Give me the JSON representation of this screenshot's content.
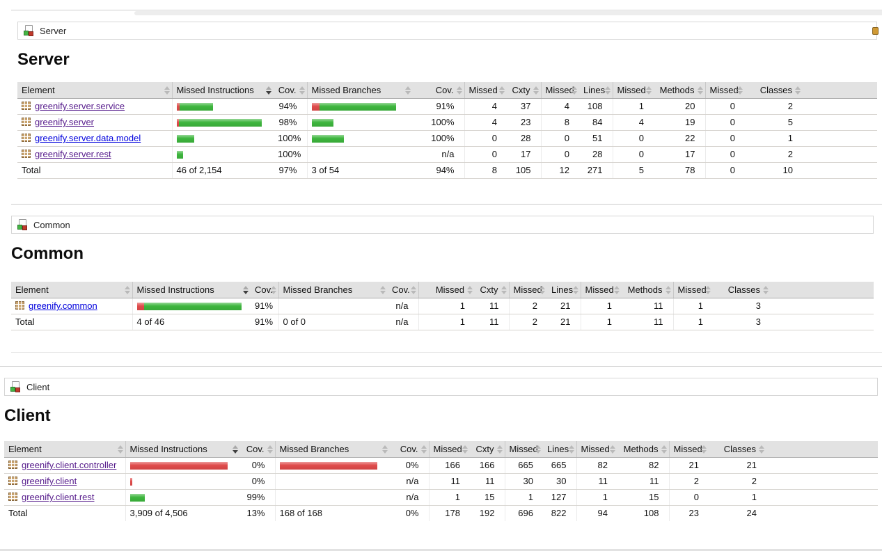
{
  "colors": {
    "covered_green": "#3db53d",
    "missed_red": "#df4b4b",
    "link_blue": "#0000dd",
    "link_visited_purple": "#551a8b"
  },
  "icons": {
    "breadcrumb": "group-coverage-icon (page with green and red blocks)",
    "package": "package-icon (tan waffle grid)",
    "sort": "sort-arrows-icon",
    "sorted": "sort-desc-icon",
    "crumb_right_partial": "sessions-icon (cut off at right edge)"
  },
  "page": {
    "sections": [
      {
        "breadcrumb": "Server",
        "title": "Server",
        "has_session_blob": true,
        "headers": [
          "Element",
          "Missed Instructions",
          "Cov.",
          "Missed Branches",
          "Cov.",
          "Missed",
          "Cxty",
          "Missed",
          "Lines",
          "Missed",
          "Methods",
          "Missed",
          "Classes"
        ],
        "sort": {
          "column": "Missed Instructions",
          "column_index": 1,
          "direction": "desc"
        },
        "rows": [
          {
            "element": "greenify.server.service",
            "visited": true,
            "instr_bar": {
              "red": 4,
              "green": 48
            },
            "instr_cov": "94%",
            "branch_bar": {
              "red": 11,
              "green": 110
            },
            "branch_cov": "91%",
            "cells": [
              "4",
              "37",
              "4",
              "108",
              "1",
              "20",
              "0",
              "2"
            ]
          },
          {
            "element": "greenify.server",
            "visited": true,
            "instr_bar": {
              "red": 3,
              "green": 119
            },
            "instr_cov": "98%",
            "branch_bar": {
              "red": 0,
              "green": 31
            },
            "branch_cov": "100%",
            "cells": [
              "4",
              "23",
              "8",
              "84",
              "4",
              "19",
              "0",
              "5"
            ]
          },
          {
            "element": "greenify.server.data.model",
            "visited": false,
            "instr_bar": {
              "red": 0,
              "green": 25
            },
            "instr_cov": "100%",
            "branch_bar": {
              "red": 0,
              "green": 46
            },
            "branch_cov": "100%",
            "cells": [
              "0",
              "28",
              "0",
              "51",
              "0",
              "22",
              "0",
              "1"
            ]
          },
          {
            "element": "greenify.server.rest",
            "visited": true,
            "instr_bar": {
              "red": 0,
              "green": 9
            },
            "instr_cov": "100%",
            "branch_bar": {
              "red": 0,
              "green": 0
            },
            "branch_cov": "n/a",
            "cells": [
              "0",
              "17",
              "0",
              "28",
              "0",
              "17",
              "0",
              "2"
            ]
          }
        ],
        "total": {
          "label": "Total",
          "instr": "46 of 2,154",
          "instr_cov": "97%",
          "branch": "3 of 54",
          "branch_cov": "94%",
          "cells": [
            "8",
            "105",
            "12",
            "271",
            "5",
            "78",
            "0",
            "10"
          ]
        }
      },
      {
        "breadcrumb": "Common",
        "title": "Common",
        "has_session_blob": false,
        "headers": [
          "Element",
          "Missed Instructions",
          "Cov.",
          "Missed Branches",
          "Cov.",
          "Missed",
          "Cxty",
          "Missed",
          "Lines",
          "Missed",
          "Methods",
          "Missed",
          "Classes"
        ],
        "sort": {
          "column": "Missed Instructions",
          "column_index": 1,
          "direction": "desc"
        },
        "rows": [
          {
            "element": "greenify.common",
            "visited": false,
            "instr_bar": {
              "red": 10,
              "green": 140
            },
            "instr_cov": "91%",
            "branch_bar": {
              "red": 0,
              "green": 0
            },
            "branch_cov": "n/a",
            "cells": [
              "1",
              "11",
              "2",
              "21",
              "1",
              "11",
              "1",
              "3"
            ]
          }
        ],
        "total": {
          "label": "Total",
          "instr": "4 of 46",
          "instr_cov": "91%",
          "branch": "0 of 0",
          "branch_cov": "n/a",
          "cells": [
            "1",
            "11",
            "2",
            "21",
            "1",
            "11",
            "1",
            "3"
          ]
        }
      },
      {
        "breadcrumb": "Client",
        "title": "Client",
        "has_session_blob": false,
        "headers": [
          "Element",
          "Missed Instructions",
          "Cov.",
          "Missed Branches",
          "Cov.",
          "Missed",
          "Cxty",
          "Missed",
          "Lines",
          "Missed",
          "Methods",
          "Missed",
          "Classes"
        ],
        "sort": {
          "column": "Missed Instructions",
          "column_index": 1,
          "direction": "desc"
        },
        "rows": [
          {
            "element": "greenify.client.controller",
            "visited": true,
            "instr_bar": {
              "red": 140,
              "green": 0
            },
            "instr_cov": "0%",
            "branch_bar": {
              "red": 140,
              "green": 0
            },
            "branch_cov": "0%",
            "cells": [
              "166",
              "166",
              "665",
              "665",
              "82",
              "82",
              "21",
              "21"
            ]
          },
          {
            "element": "greenify.client",
            "visited": true,
            "instr_bar": {
              "red": 3,
              "green": 0
            },
            "instr_cov": "0%",
            "branch_bar": {
              "red": 0,
              "green": 0
            },
            "branch_cov": "n/a",
            "cells": [
              "11",
              "11",
              "30",
              "30",
              "11",
              "11",
              "2",
              "2"
            ]
          },
          {
            "element": "greenify.client.rest",
            "visited": true,
            "instr_bar": {
              "red": 0,
              "green": 21
            },
            "instr_cov": "99%",
            "branch_bar": {
              "red": 0,
              "green": 0
            },
            "branch_cov": "n/a",
            "cells": [
              "1",
              "15",
              "1",
              "127",
              "1",
              "15",
              "0",
              "1"
            ]
          }
        ],
        "total": {
          "label": "Total",
          "instr": "3,909 of 4,506",
          "instr_cov": "13%",
          "branch": "168 of 168",
          "branch_cov": "0%",
          "cells": [
            "178",
            "192",
            "696",
            "822",
            "94",
            "108",
            "23",
            "24"
          ]
        }
      }
    ]
  }
}
